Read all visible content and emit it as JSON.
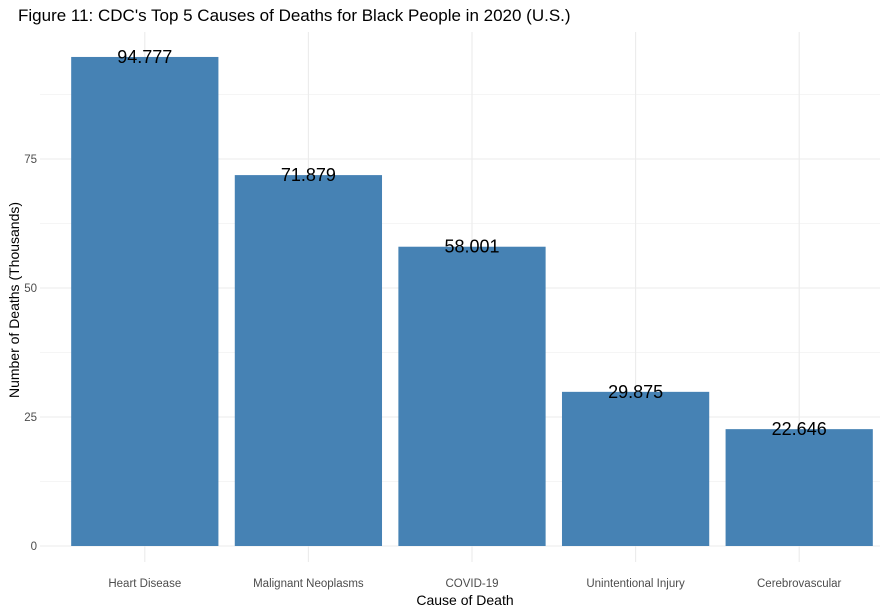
{
  "chart_data": {
    "type": "bar",
    "title": "Figure 11: CDC's Top 5 Causes of Deaths for Black People in 2020 (U.S.)",
    "xlabel": "Cause of Death",
    "ylabel": "Number of Deaths (Thousands)",
    "categories": [
      "Heart Disease",
      "Malignant Neoplasms",
      "COVID-19",
      "Unintentional Injury",
      "Cerebrovascular"
    ],
    "values": [
      94.777,
      71.879,
      58.001,
      29.875,
      22.646
    ],
    "data_labels": [
      "94.777",
      "71.879",
      "58.001",
      "29.875",
      "22.646"
    ],
    "ylim": [
      0,
      100
    ],
    "yticks": [
      0,
      25,
      50,
      75
    ],
    "ytick_labels": [
      "0",
      "25",
      "50",
      "75"
    ],
    "grid": true,
    "legend": "none",
    "bar_color": "#4682B4"
  }
}
